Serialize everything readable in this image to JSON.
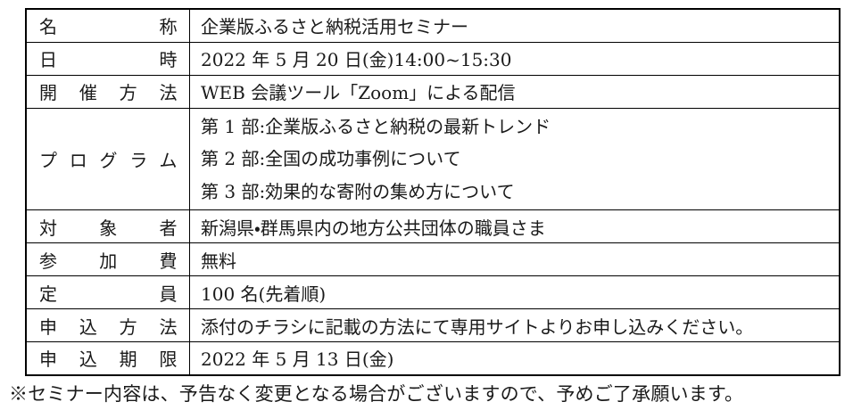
{
  "document": {
    "type": "seminar-information-table",
    "colors": {
      "background": "#ffffff",
      "text": "#1a1a1a",
      "border": "#000000"
    },
    "table": {
      "rows": [
        {
          "label": "名称",
          "value": "企業版ふるさと納税活用セミナー"
        },
        {
          "label": "日時",
          "value": "2022 年 5 月 20 日(金)14:00~15:30"
        },
        {
          "label": "開催方法",
          "value": "WEB 会議ツール「Zoom」による配信"
        },
        {
          "label": "プログラム",
          "lines": [
            "第 1 部:企業版ふるさと納税の最新トレンド",
            "第 2 部:全国の成功事例について",
            "第 3 部:効果的な寄附の集め方について"
          ]
        },
        {
          "label": "対象者",
          "value": "新潟県・群馬県内の地方公共団体の職員さま"
        },
        {
          "label": "参加費",
          "value": "無料"
        },
        {
          "label": "定員",
          "value": "100 名(先着順)"
        },
        {
          "label": "申込方法",
          "value": "添付のチラシに記載の方法にて専用サイトよりお申し込みください。"
        },
        {
          "label": "申込期限",
          "value": "2022 年 5 月 13 日(金)"
        }
      ]
    },
    "footer": {
      "note": "※セミナー内容は、予告なく変更となる場合がございますので、予めご了承願います。"
    }
  }
}
